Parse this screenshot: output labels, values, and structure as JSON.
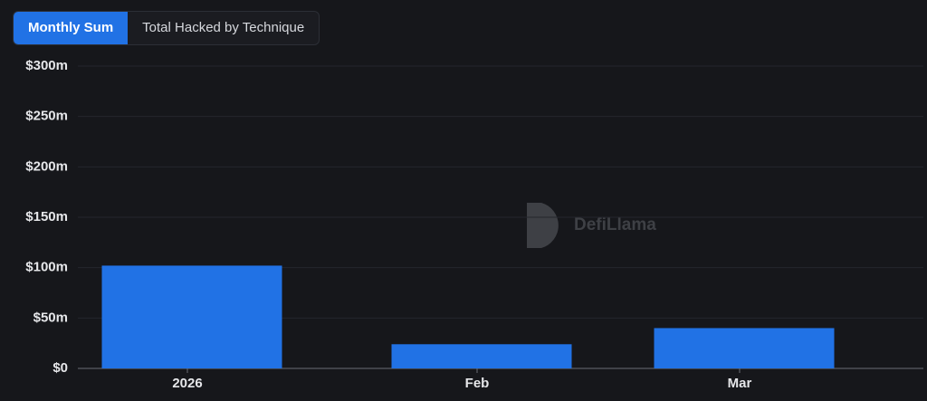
{
  "tabs": [
    "Monthly Sum",
    "Total Hacked by Technique"
  ],
  "watermark": "DefiLlama",
  "chart_data": {
    "type": "bar",
    "categories": [
      "2026",
      "Feb",
      "Mar"
    ],
    "values": [
      102,
      24,
      40
    ],
    "color": "#2172e5",
    "ylim": [
      0,
      300
    ],
    "yticks": [
      {
        "value": 0,
        "label": "$0"
      },
      {
        "value": 50,
        "label": "$50m"
      },
      {
        "value": 100,
        "label": "$100m"
      },
      {
        "value": 150,
        "label": "$150m"
      },
      {
        "value": 200,
        "label": "$200m"
      },
      {
        "value": 250,
        "label": "$250m"
      },
      {
        "value": 300,
        "label": "$300m"
      }
    ],
    "grid": true
  }
}
